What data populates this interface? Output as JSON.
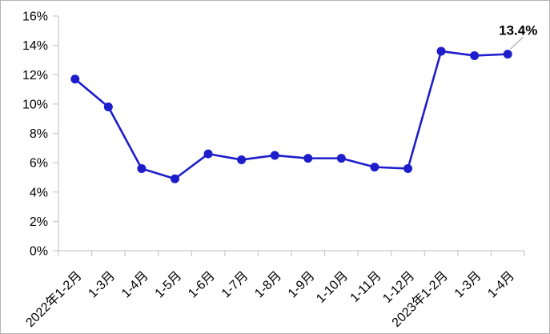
{
  "window": {
    "background": "#ffffff",
    "frame_border_color": "#b4b4b4"
  },
  "colors": {
    "line": "#1d1dcb",
    "marker": "#1d1dcb",
    "axis": "#c9c9c9",
    "tick": "#c9c9c9",
    "label_text": "#000000",
    "annotation_text": "#000000",
    "annotation_leader": "#a9a9a9"
  },
  "chart_data": {
    "type": "line",
    "title": "",
    "xlabel": "",
    "ylabel": "",
    "grid": false,
    "legend": "none",
    "marker_style": "filled-circle",
    "x_label_rotation_deg": 45,
    "categories": [
      "2022年1-2月",
      "1-3月",
      "1-4月",
      "1-5月",
      "1-6月",
      "1-7月",
      "1-8月",
      "1-9月",
      "1-10月",
      "1-11月",
      "1-12月",
      "2023年1-2月",
      "1-3月",
      "1-4月"
    ],
    "series": [
      {
        "name": "",
        "color": "#1d1dcb",
        "values": [
          11.7,
          9.8,
          5.6,
          4.9,
          6.6,
          6.2,
          6.5,
          6.3,
          6.3,
          5.7,
          5.6,
          13.6,
          13.3,
          13.4
        ]
      }
    ],
    "ylim": [
      0,
      16
    ],
    "y_ticks": [
      0,
      2,
      4,
      6,
      8,
      10,
      12,
      14,
      16
    ],
    "y_tick_labels": [
      "0%",
      "2%",
      "4%",
      "6%",
      "8%",
      "10%",
      "12%",
      "14%",
      "16%"
    ],
    "annotation": {
      "text": "13.4%",
      "series_index": 0,
      "target_index": 13
    }
  }
}
